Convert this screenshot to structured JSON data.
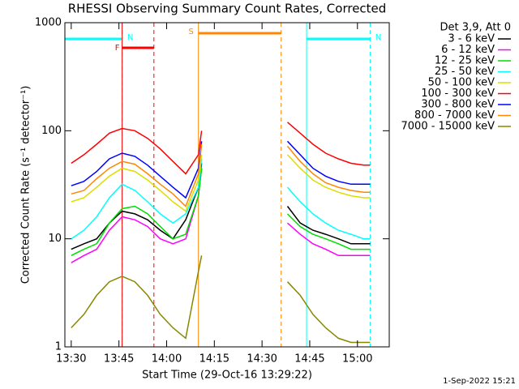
{
  "chart_data": {
    "type": "line",
    "title": "RHESSI Observing Summary Count Rates, Corrected",
    "xlabel": "Start Time (29-Oct-16 13:29:22)",
    "ylabel": "Corrected Count Rate (s⁻¹ detector⁻¹)",
    "legend_title": "Det 3,9, Att 0",
    "footer": "1-Sep-2022 15:21",
    "log_y": true,
    "ylim": [
      1,
      1000
    ],
    "yticks": [
      1,
      10,
      100,
      1000
    ],
    "xlim": [
      808,
      910
    ],
    "xticks": [
      {
        "value": 810,
        "label": "13:30"
      },
      {
        "value": 825,
        "label": "13:45"
      },
      {
        "value": 840,
        "label": "14:00"
      },
      {
        "value": 855,
        "label": "14:15"
      },
      {
        "value": 870,
        "label": "14:30"
      },
      {
        "value": 885,
        "label": "14:45"
      },
      {
        "value": 900,
        "label": "15:00"
      }
    ],
    "x": [
      810,
      814,
      818,
      822,
      826,
      830,
      834,
      838,
      842,
      846,
      850,
      851,
      865,
      878,
      882,
      886,
      890,
      894,
      898,
      902,
      904
    ],
    "series": [
      {
        "name": "3 - 6 keV",
        "color": "#000000",
        "values": [
          8,
          9,
          10,
          14,
          18,
          17,
          15,
          12,
          10,
          15,
          30,
          50,
          null,
          20,
          14,
          12,
          11,
          10,
          9,
          9,
          9
        ]
      },
      {
        "name": "6 - 12 keV",
        "color": "#ff00ff",
        "values": [
          6,
          7,
          8,
          12,
          16,
          15,
          13,
          10,
          9,
          10,
          25,
          45,
          null,
          14,
          11,
          9,
          8,
          7,
          7,
          7,
          7
        ]
      },
      {
        "name": "12 - 25 keV",
        "color": "#00dd00",
        "values": [
          7,
          8,
          9,
          14,
          19,
          20,
          17,
          13,
          10,
          11,
          25,
          45,
          null,
          17,
          13,
          11,
          10,
          9,
          8,
          8,
          8
        ]
      },
      {
        "name": "25 - 50 keV",
        "color": "#00ffff",
        "values": [
          10,
          12,
          16,
          24,
          32,
          28,
          22,
          17,
          14,
          17,
          30,
          55,
          null,
          30,
          22,
          17,
          14,
          12,
          11,
          10,
          10
        ]
      },
      {
        "name": "50 - 100 keV",
        "color": "#dddd00",
        "values": [
          22,
          24,
          30,
          38,
          45,
          42,
          35,
          28,
          22,
          18,
          35,
          60,
          null,
          60,
          45,
          35,
          30,
          27,
          25,
          24,
          24
        ]
      },
      {
        "name": "100 - 300 keV",
        "color": "#ff0000",
        "values": [
          50,
          60,
          75,
          95,
          105,
          100,
          85,
          68,
          52,
          40,
          60,
          100,
          null,
          120,
          95,
          75,
          62,
          55,
          50,
          48,
          48
        ]
      },
      {
        "name": "300 - 800 keV",
        "color": "#0000ff",
        "values": [
          31,
          34,
          42,
          55,
          62,
          58,
          48,
          38,
          30,
          24,
          45,
          80,
          null,
          80,
          60,
          45,
          38,
          34,
          32,
          32,
          32
        ]
      },
      {
        "name": "800 - 7000 keV",
        "color": "#ff8800",
        "values": [
          26,
          28,
          36,
          45,
          52,
          49,
          40,
          32,
          26,
          20,
          40,
          75,
          null,
          72,
          52,
          40,
          33,
          30,
          28,
          27,
          27
        ]
      },
      {
        "name": "7000 - 15000 keV",
        "color": "#888800",
        "values": [
          1.5,
          2,
          3,
          4,
          4.5,
          4,
          3,
          2,
          1.5,
          1.2,
          5,
          7,
          null,
          4,
          3,
          2,
          1.5,
          1.2,
          1.1,
          1.1,
          1.1
        ]
      }
    ],
    "flags": [
      {
        "label": "N",
        "color": "#00ffff",
        "start": 808,
        "end": 826
      },
      {
        "label": "N",
        "color": "#00ffff",
        "start": 884,
        "end": 904
      },
      {
        "label": "F",
        "color": "#ff0000",
        "start": 826,
        "end": 836
      },
      {
        "label": "S",
        "color": "#ff8800",
        "start": 850,
        "end": 876
      }
    ]
  }
}
